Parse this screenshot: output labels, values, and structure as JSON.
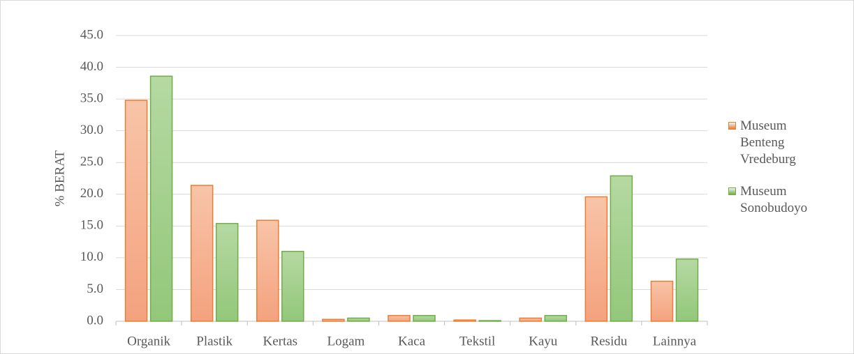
{
  "chart_data": {
    "type": "bar",
    "y_label": "% BERAT",
    "categories": [
      "Organik",
      "Plastik",
      "Kertas",
      "Logam",
      "Kaca",
      "Tekstil",
      "Kayu",
      "Residu",
      "Lainnya"
    ],
    "series": [
      {
        "name": "Museum Benteng Vredeburg",
        "color": "#ed7d31",
        "values": [
          34.8,
          21.4,
          15.9,
          0.3,
          0.9,
          0.2,
          0.5,
          19.6,
          6.3
        ]
      },
      {
        "name": "Museum Sonobudoyo",
        "color": "#70ad47",
        "values": [
          38.6,
          15.4,
          11.0,
          0.5,
          0.9,
          0.1,
          0.9,
          22.9,
          9.8
        ]
      }
    ],
    "ylim": [
      0,
      45
    ],
    "yticks": [
      {
        "value": 0,
        "label": "0.0"
      },
      {
        "value": 5,
        "label": "5.0"
      },
      {
        "value": 10,
        "label": "10.0"
      },
      {
        "value": 15,
        "label": "15.0"
      },
      {
        "value": 20,
        "label": "20.0"
      },
      {
        "value": 25,
        "label": "25.0"
      },
      {
        "value": 30,
        "label": "30.0"
      },
      {
        "value": 35,
        "label": "35.0"
      },
      {
        "value": 40,
        "label": "40.0"
      },
      {
        "value": 45,
        "label": "45.0"
      }
    ],
    "grid": true,
    "legend": "right"
  }
}
